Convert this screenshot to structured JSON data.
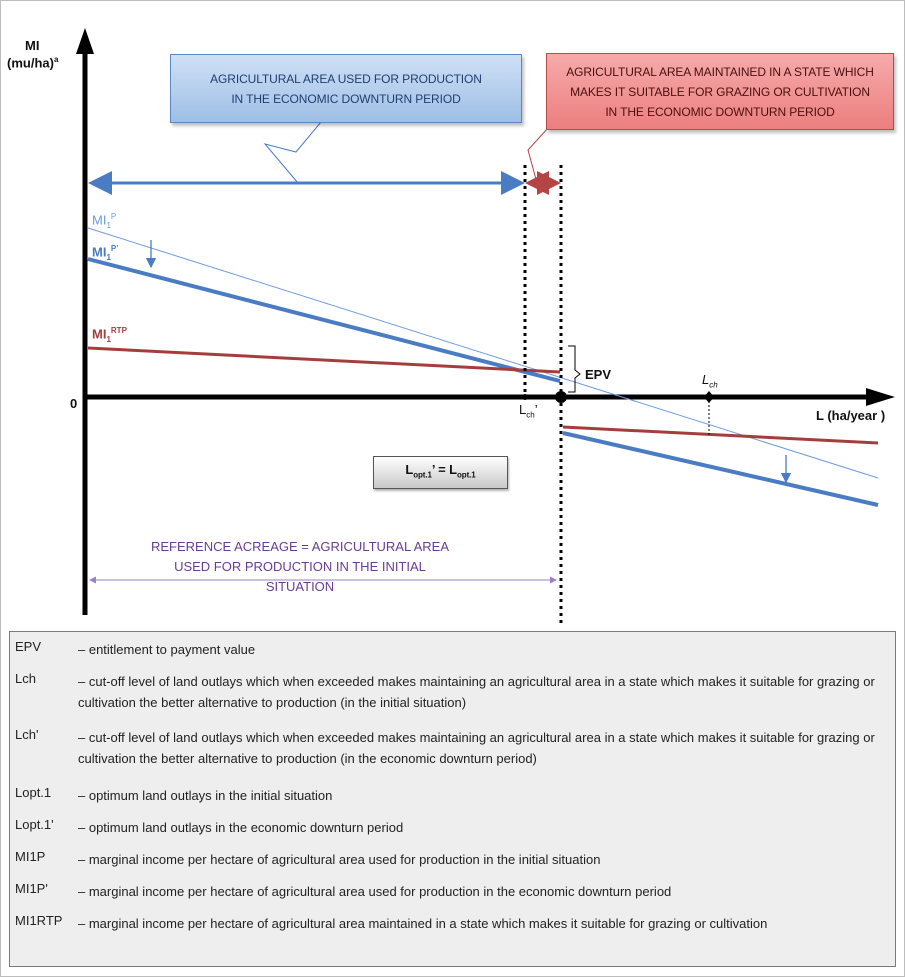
{
  "axes": {
    "y_label": "MI",
    "y_unit": "(mu/ha)",
    "y_unit_sup": "a",
    "origin": "0",
    "x_label_prefix": "L (",
    "x_label_unit": "ha/year",
    "x_label_suffix": " )"
  },
  "boxes": {
    "production_line1": "AGRICULTURAL AREA USED FOR PRODUCTION",
    "production_line2": "IN THE ECONOMIC DOWNTURN PERIOD",
    "maintained_line1": "AGRICULTURAL AREA MAINTAINED IN A STATE WHICH",
    "maintained_line2": "MAKES IT SUITABLE FOR GRAZING OR CULTIVATION",
    "maintained_line3": "IN THE ECONOMIC DOWNTURN PERIOD",
    "reference_line1": "REFERENCE ACREAGE = AGRICULTURAL AREA",
    "reference_line2": "USED FOR PRODUCTION IN THE INITIAL SITUATION",
    "lopt_left": "L",
    "lopt_left_sub": "opt.1",
    "lopt_mid": "’ = L",
    "lopt_right_sub": "opt.1"
  },
  "labels": {
    "mi1p": "MI",
    "mi1p_sub": "1",
    "mi1p_sup": "P",
    "mi1p_prime": "MI",
    "mi1p_prime_sub": "1",
    "mi1p_prime_sup": "P’",
    "mi1rtp": "MI",
    "mi1rtp_sub": "1",
    "mi1rtp_sup": "RTP",
    "epv": "EPV",
    "lch": "L",
    "lch_sub": "ch",
    "lch_prime": "L",
    "lch_prime_sub": "ch",
    "lch_prime_mark": "’"
  },
  "colors": {
    "production": "#4a7cc4",
    "initial": "#6b9be0",
    "maintained": "#a63d3d",
    "reference": "#9b7fc9"
  },
  "legend": [
    {
      "term": "EPV",
      "def": "– entitlement to payment value"
    },
    {
      "term": "Lch",
      "def": "– cut-off level of land outlays which when exceeded makes maintaining an agricultural area in a state which makes it suitable for grazing or cultivation the better alternative to production (in the initial situation)"
    },
    {
      "term": "Lch'",
      "def": "– cut-off level of land outlays which when exceeded makes maintaining an agricultural area in a state which makes it suitable for grazing or cultivation the better alternative to production (in the economic downturn period)"
    },
    {
      "term": "Lopt.1",
      "def": "– optimum land outlays in the initial situation"
    },
    {
      "term": "Lopt.1'",
      "def": "– optimum land outlays in the economic downturn period"
    },
    {
      "term": "MI1P",
      "def": "– marginal income per hectare of agricultural area used for production in the initial situation"
    },
    {
      "term": "MI1P'",
      "def": "– marginal income per hectare of agricultural area used for production in the economic downturn period"
    },
    {
      "term": "MI1RTP",
      "def": "– marginal income per hectare of agricultural area maintained in a state which makes it suitable for grazing or cultivation"
    }
  ]
}
